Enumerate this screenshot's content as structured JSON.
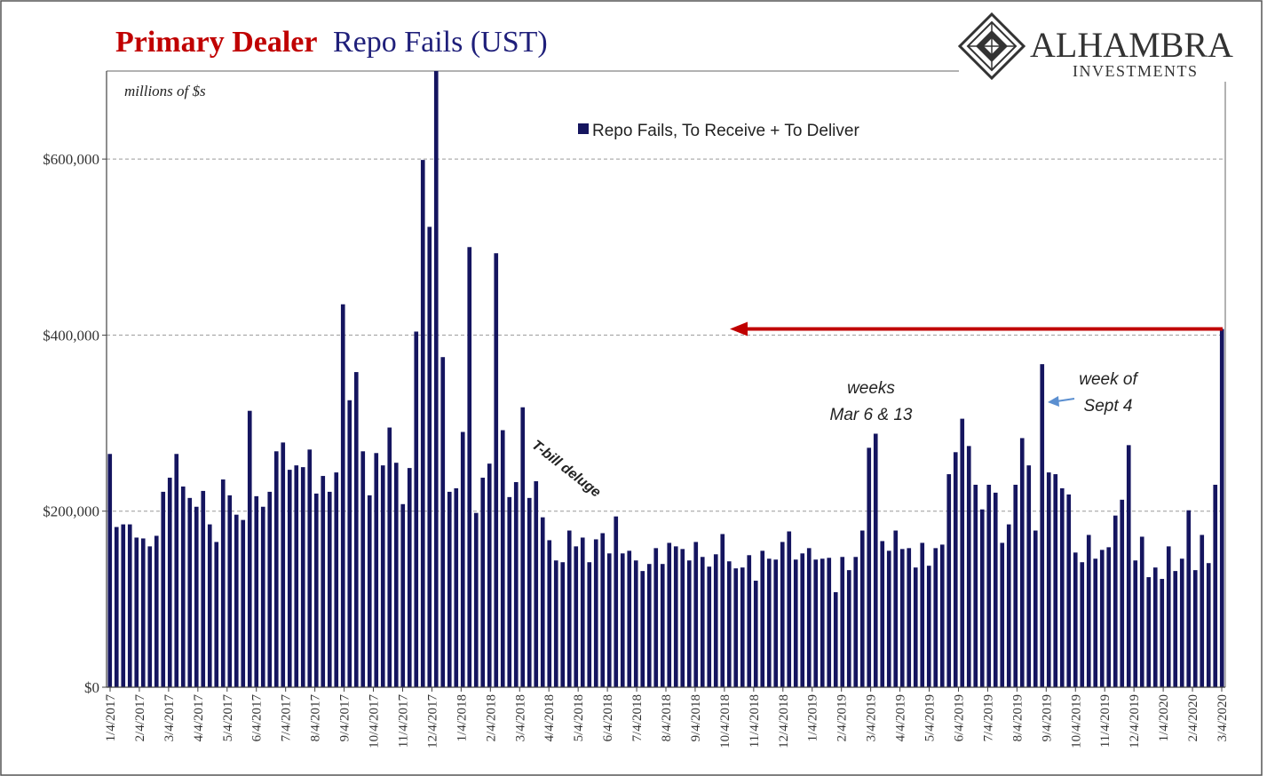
{
  "header": {
    "title_red": "Primary Dealer",
    "title_blue": "Repo Fails (UST)",
    "logo_name": "ALHAMBRA",
    "logo_sub": "INVESTMENTS"
  },
  "colors": {
    "bar": "#15155f",
    "title_red": "#c00000",
    "title_blue": "#1f1f7a",
    "arrow_red": "#c00000",
    "arrow_blue": "#5b8fd0",
    "grid": "#9a9a9a"
  },
  "chart_data": {
    "type": "bar",
    "units_label": "millions of $s",
    "ylim": [
      0,
      700000
    ],
    "yticks": [
      0,
      200000,
      400000,
      600000
    ],
    "ytick_labels": [
      "$0",
      "$200,000",
      "$400,000",
      "$600,000"
    ],
    "grid": "horizontal dashed",
    "legend_position": "top-center",
    "series": [
      {
        "name": "Repo Fails, To Receive + To Deliver",
        "start_label": "1/4/2017",
        "frequency": "weekly",
        "values": [
          265000,
          182000,
          185000,
          185000,
          170000,
          169000,
          160000,
          172000,
          222000,
          238000,
          265000,
          228000,
          215000,
          205000,
          223000,
          185000,
          165000,
          236000,
          218000,
          196000,
          190000,
          314000,
          217000,
          205000,
          222000,
          268000,
          278000,
          247000,
          252000,
          250000,
          270000,
          220000,
          240000,
          222000,
          244000,
          435000,
          326000,
          358000,
          268000,
          218000,
          266000,
          252000,
          295000,
          255000,
          208000,
          249000,
          404000,
          599000,
          523000,
          700000,
          375000,
          222000,
          226000,
          290000,
          500000,
          198000,
          238000,
          254000,
          493000,
          292000,
          216000,
          233000,
          318000,
          215000,
          234000,
          193000,
          167000,
          144000,
          142000,
          178000,
          160000,
          170000,
          142000,
          168000,
          175000,
          152000,
          194000,
          152000,
          155000,
          144000,
          132000,
          140000,
          158000,
          140000,
          164000,
          160000,
          157000,
          144000,
          165000,
          148000,
          137000,
          151000,
          174000,
          143000,
          135000,
          136000,
          150000,
          121000,
          155000,
          146000,
          145000,
          165000,
          177000,
          145000,
          152000,
          158000,
          145000,
          146000,
          147000,
          108000,
          148000,
          133000,
          148000,
          178000,
          272000,
          288000,
          166000,
          155000,
          178000,
          157000,
          158000,
          136000,
          164000,
          138000,
          158000,
          162000,
          242000,
          267000,
          305000,
          274000,
          230000,
          202000,
          230000,
          221000,
          164000,
          185000,
          230000,
          283000,
          252000,
          178000,
          367000,
          244000,
          242000,
          226000,
          219000,
          153000,
          142000,
          173000,
          146000,
          156000,
          159000,
          195000,
          213000,
          275000,
          144000,
          171000,
          125000,
          136000,
          123000,
          160000,
          132000,
          146000,
          201000,
          133000,
          173000,
          141000,
          230000,
          407000
        ]
      }
    ],
    "x_tick_labels": [
      "1/4/2017",
      "2/4/2017",
      "3/4/2017",
      "4/4/2017",
      "5/4/2017",
      "6/4/2017",
      "7/4/2017",
      "8/4/2017",
      "9/4/2017",
      "10/4/2017",
      "11/4/2017",
      "12/4/2017",
      "1/4/2018",
      "2/4/2018",
      "3/4/2018",
      "4/4/2018",
      "5/4/2018",
      "6/4/2018",
      "7/4/2018",
      "8/4/2018",
      "9/4/2018",
      "10/4/2018",
      "11/4/2018",
      "12/4/2018",
      "1/4/2019",
      "2/4/2019",
      "3/4/2019",
      "4/4/2019",
      "5/4/2019",
      "6/4/2019",
      "7/4/2019",
      "8/4/2019",
      "9/4/2019",
      "10/4/2019",
      "11/4/2019",
      "12/4/2019",
      "1/4/2020",
      "2/4/2020",
      "3/4/2020"
    ],
    "annotations": [
      {
        "text": "T-bill deluge"
      },
      {
        "text_lines": [
          "weeks",
          "Mar 6 & 13"
        ]
      },
      {
        "text_lines": [
          "week of",
          "Sept 4"
        ]
      }
    ],
    "reference_arrow": {
      "level": 407000
    }
  }
}
